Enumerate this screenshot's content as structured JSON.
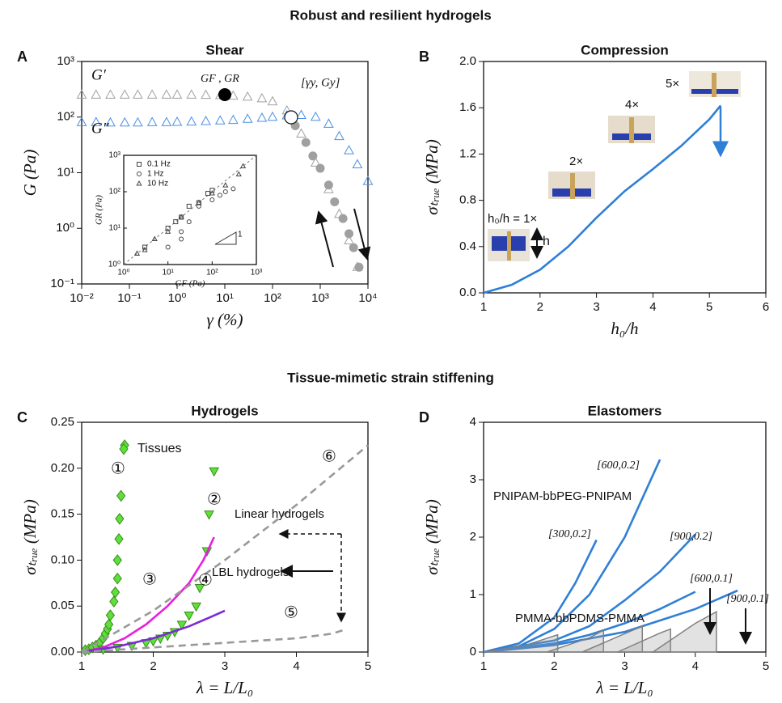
{
  "sections": [
    "Robust and resilient hydrogels",
    "Tissue-mimetic strain stiffening"
  ],
  "chart_data": [
    {
      "label": "A",
      "title": "Shear",
      "type": "scatter",
      "xlog": true,
      "ylog": true,
      "xlim": [
        0.01,
        10000
      ],
      "ylim": [
        0.1,
        1000
      ],
      "xticks": [
        {
          "value": 0.01,
          "label": "10⁻²"
        },
        {
          "value": 0.1,
          "label": "10⁻¹"
        },
        {
          "value": 1,
          "label": "10⁰"
        },
        {
          "value": 10,
          "label": "10¹"
        },
        {
          "value": 100,
          "label": "10²"
        },
        {
          "value": 1000,
          "label": "10³"
        },
        {
          "value": 10000,
          "label": "10⁴"
        }
      ],
      "yticks": [
        {
          "value": 0.1,
          "label": "10⁻¹"
        },
        {
          "value": 1,
          "label": "10⁰"
        },
        {
          "value": 10,
          "label": "10¹"
        },
        {
          "value": 100,
          "label": "10²"
        },
        {
          "value": 1000,
          "label": "10³"
        }
      ],
      "xlabel": "γ (%)",
      "ylabel": "G (Pa)",
      "series": [
        {
          "name": "G′",
          "color": "#a0a0a0",
          "marker": "triangle",
          "fill": "none",
          "x": [
            0.01,
            0.02,
            0.04,
            0.08,
            0.15,
            0.3,
            0.6,
            1,
            2,
            4,
            8,
            15,
            30,
            60,
            100,
            200,
            400,
            800,
            1500,
            2500,
            4000,
            6000
          ],
          "values": [
            250,
            250,
            250,
            250,
            250,
            250,
            250,
            250,
            250,
            248,
            245,
            240,
            230,
            215,
            190,
            130,
            50,
            15,
            5,
            1.8,
            0.6,
            0.2
          ]
        },
        {
          "name": "G″",
          "color": "#4a90e2",
          "marker": "triangle",
          "fill": "none",
          "x": [
            0.01,
            0.02,
            0.04,
            0.08,
            0.15,
            0.3,
            0.6,
            1,
            2,
            4,
            8,
            15,
            30,
            60,
            100,
            200,
            400,
            800,
            1500,
            2500,
            4000,
            6000,
            10000
          ],
          "values": [
            80,
            80,
            79,
            79,
            79,
            80,
            80,
            81,
            82,
            84,
            86,
            88,
            92,
            96,
            100,
            106,
            108,
            100,
            75,
            45,
            25,
            14,
            7
          ]
        },
        {
          "color": "#a0a0a0",
          "marker": "circle",
          "fill": "#a0a0a0",
          "x": [
            300,
            500,
            700,
            1000,
            1500,
            2000,
            3000,
            4000,
            5000,
            6500
          ],
          "values": [
            70,
            35,
            20,
            12,
            6,
            3,
            1.5,
            0.8,
            0.45,
            0.2
          ]
        }
      ],
      "annotations": [
        "GF , GR",
        "[γy, Gy]"
      ]
    },
    {
      "type": "scatter",
      "xlog": true,
      "ylog": true,
      "xlim": [
        1,
        1000
      ],
      "ylim": [
        1,
        1000
      ],
      "xticks": [
        {
          "value": 1,
          "label": "10⁰"
        },
        {
          "value": 10,
          "label": "10¹"
        },
        {
          "value": 100,
          "label": "10²"
        },
        {
          "value": 1000,
          "label": "10³"
        }
      ],
      "yticks": [
        {
          "value": 1,
          "label": "10⁰"
        },
        {
          "value": 10,
          "label": "10¹"
        },
        {
          "value": 100,
          "label": "10²"
        },
        {
          "value": 1000,
          "label": "10³"
        }
      ],
      "xlabel": "GF (Pa)",
      "ylabel": "GR (Pa)",
      "legend": "upper left",
      "series": [
        {
          "name": "0.1 Hz",
          "color": "#444444",
          "marker": "square",
          "fill": "none",
          "x": [
            3,
            10,
            15,
            20,
            30,
            50,
            80,
            100
          ],
          "values": [
            3,
            10,
            15,
            20,
            40,
            50,
            90,
            110
          ]
        },
        {
          "name": "1 Hz",
          "color": "#444444",
          "marker": "circle",
          "fill": "none",
          "x": [
            10,
            20,
            20,
            30,
            50,
            100,
            150,
            200,
            300
          ],
          "values": [
            3,
            5,
            8,
            15,
            40,
            60,
            80,
            100,
            120
          ]
        },
        {
          "name": "10 Hz",
          "color": "#444444",
          "marker": "triangle",
          "fill": "none",
          "x": [
            2,
            3,
            5,
            10,
            20,
            50,
            100,
            200,
            400,
            500
          ],
          "values": [
            2,
            2.5,
            5,
            8,
            20,
            50,
            90,
            150,
            300,
            500
          ]
        }
      ],
      "annotations": [
        "1"
      ]
    },
    {
      "label": "B",
      "title": "Compression",
      "type": "line",
      "xlim": [
        1,
        6
      ],
      "ylim": [
        0,
        2
      ],
      "xticks": [
        1,
        2,
        3,
        4,
        5,
        6
      ],
      "yticks": [
        {
          "value": 0,
          "label": "0.0"
        },
        0.4,
        0.8,
        1.2,
        1.6,
        {
          "value": 2,
          "label": "2.0"
        }
      ],
      "xlabel": "h₀/h",
      "ylabel": "σₜᵣᵤₑ (MPa)",
      "series": [
        {
          "color": "#2f7fd6",
          "x": [
            1,
            1.5,
            2,
            2.5,
            3,
            3.5,
            4,
            4.5,
            5,
            5.2
          ],
          "values": [
            0,
            0.07,
            0.2,
            0.4,
            0.65,
            0.88,
            1.07,
            1.27,
            1.5,
            1.62
          ]
        }
      ],
      "annotations": [
        "h₀/h = 1×",
        "2×",
        "4×",
        "5×",
        "h"
      ]
    },
    {
      "label": "C",
      "title": "Hydrogels",
      "type": "line",
      "xlim": [
        1,
        5
      ],
      "ylim": [
        0,
        0.25
      ],
      "xticks": [
        1,
        2,
        3,
        4,
        5
      ],
      "yticks": [
        {
          "value": 0,
          "label": "0.00"
        },
        0.05,
        {
          "value": 0.1,
          "label": "0.10"
        },
        0.15,
        {
          "value": 0.2,
          "label": "0.20"
        },
        0.25
      ],
      "xlabel": "λ = L/L₀",
      "ylabel": "σₜᵣᵤₑ (MPa)",
      "series": [
        {
          "name": "Tissues",
          "color": "#3a8a1a",
          "marker": "diamond",
          "fill": "#5ee03a",
          "x": [
            1.05,
            1.1,
            1.15,
            1.2,
            1.25,
            1.3,
            1.33,
            1.36,
            1.38,
            1.4,
            1.45,
            1.47,
            1.5,
            1.5,
            1.52,
            1.53,
            1.55,
            1.6
          ],
          "values": [
            0.002,
            0.003,
            0.005,
            0.007,
            0.01,
            0.015,
            0.02,
            0.025,
            0.03,
            0.04,
            0.055,
            0.065,
            0.08,
            0.1,
            0.123,
            0.145,
            0.17,
            0.225
          ]
        },
        {
          "color": "#3a8a1a",
          "marker": "tridown",
          "fill": "#5ee03a",
          "x": [
            1.3,
            1.5,
            1.7,
            1.9,
            2.0,
            2.1,
            2.2,
            2.3,
            2.4,
            2.5,
            2.6,
            2.65,
            2.75,
            2.78,
            2.85
          ],
          "values": [
            0.003,
            0.005,
            0.007,
            0.01,
            0.012,
            0.015,
            0.018,
            0.022,
            0.03,
            0.04,
            0.05,
            0.07,
            0.11,
            0.15,
            0.197
          ]
        },
        {
          "color": "#e81ee0",
          "x": [
            1,
            1.3,
            1.6,
            1.9,
            2.2,
            2.5,
            2.7,
            2.85
          ],
          "values": [
            0,
            0.005,
            0.015,
            0.03,
            0.05,
            0.075,
            0.1,
            0.125
          ]
        },
        {
          "color": "#7b2ad6",
          "x": [
            1,
            1.5,
            2,
            2.5,
            2.8,
            3
          ],
          "values": [
            0,
            0.006,
            0.015,
            0.028,
            0.038,
            0.045
          ]
        },
        {
          "color": "#999999",
          "dash": true,
          "x": [
            1,
            2,
            3,
            4,
            4.5,
            4.7
          ],
          "values": [
            0,
            0.005,
            0.01,
            0.015,
            0.02,
            0.025
          ]
        },
        {
          "color": "#999999",
          "dash": true,
          "x": [
            1,
            2,
            3,
            4,
            5
          ],
          "values": [
            0,
            0.045,
            0.1,
            0.16,
            0.225
          ]
        }
      ],
      "annotations": [
        "①",
        "②",
        "③",
        "④",
        "⑤",
        "⑥",
        "Linear hydrogels",
        "LBL hydrogels"
      ]
    },
    {
      "label": "D",
      "title": "Elastomers",
      "type": "line",
      "xlim": [
        1,
        5
      ],
      "ylim": [
        0,
        4
      ],
      "xticks": [
        1,
        2,
        3,
        4,
        5
      ],
      "yticks": [
        0,
        1,
        2,
        3,
        4
      ],
      "xlabel": "λ = L/L₀",
      "ylabel": "σₜᵣᵤₑ (MPa)",
      "series": [
        {
          "name": "[300,0.2]",
          "color": "#2f7fd6",
          "x": [
            1,
            1.5,
            2,
            2.3,
            2.6
          ],
          "values": [
            0,
            0.15,
            0.6,
            1.2,
            1.95
          ]
        },
        {
          "name": "[600,0.2]",
          "color": "#2f7fd6",
          "x": [
            1,
            1.5,
            2,
            2.5,
            3,
            3.5
          ],
          "values": [
            0,
            0.1,
            0.4,
            1.0,
            2.0,
            3.35
          ]
        },
        {
          "name": "[900,0.2]",
          "color": "#2f7fd6",
          "x": [
            1,
            2,
            2.5,
            3,
            3.5,
            4
          ],
          "values": [
            0,
            0.2,
            0.45,
            0.9,
            1.4,
            2.05
          ]
        },
        {
          "name": "[600,0.1]",
          "color": "#2f7fd6",
          "x": [
            1,
            2,
            2.5,
            3,
            3.5,
            4
          ],
          "values": [
            0,
            0.15,
            0.3,
            0.5,
            0.75,
            1.05
          ]
        },
        {
          "name": "[900,0.1]",
          "color": "#2f7fd6",
          "x": [
            1,
            2,
            3,
            3.5,
            4,
            4.6
          ],
          "values": [
            0,
            0.12,
            0.35,
            0.55,
            0.75,
            1.07
          ]
        },
        {
          "color": "#808080",
          "area": true,
          "x": [
            1,
            1.6,
            2.05,
            2.05
          ],
          "values": [
            0,
            0.12,
            0.3,
            0
          ]
        },
        {
          "color": "#808080",
          "area": true,
          "x": [
            1.9,
            2.5,
            2.7,
            2.7
          ],
          "values": [
            0,
            0.25,
            0.38,
            0
          ]
        },
        {
          "color": "#808080",
          "area": true,
          "x": [
            2.4,
            3.0,
            3.25,
            3.25
          ],
          "values": [
            0,
            0.32,
            0.45,
            0
          ]
        },
        {
          "color": "#808080",
          "area": true,
          "x": [
            2.9,
            3.5,
            3.65,
            3.65
          ],
          "values": [
            0,
            0.33,
            0.4,
            0
          ]
        },
        {
          "color": "#808080",
          "area": true,
          "x": [
            3.4,
            4.0,
            4.3,
            4.3
          ],
          "values": [
            0,
            0.5,
            0.7,
            0
          ]
        }
      ],
      "annotations": [
        "PNIPAM-bbPEG-PNIPAM",
        "PMMA-bbPDMS-PMMA"
      ]
    }
  ]
}
